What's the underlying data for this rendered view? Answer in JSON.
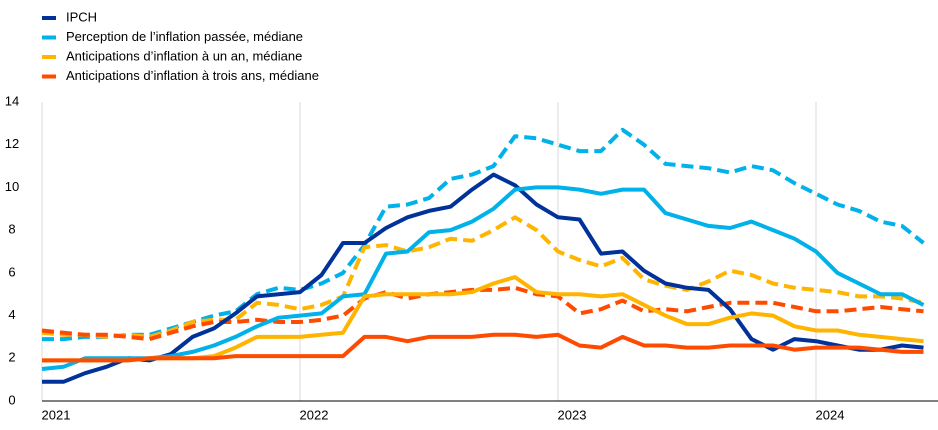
{
  "chart_data": {
    "type": "line",
    "categories": [
      "2021",
      null,
      null,
      null,
      null,
      null,
      null,
      null,
      null,
      null,
      null,
      null,
      "2022",
      null,
      null,
      null,
      null,
      null,
      null,
      null,
      null,
      null,
      null,
      null,
      "2023",
      null,
      null,
      null,
      null,
      null,
      null,
      null,
      null,
      null,
      null,
      null,
      "2024",
      null,
      null,
      null,
      null,
      null
    ],
    "series": [
      {
        "color": "#00b1ea",
        "dashed": true,
        "values": [
          2.9,
          2.9,
          3.0,
          3.0,
          3.1,
          3.1,
          3.4,
          3.7,
          4.0,
          4.2,
          5.0,
          5.3,
          5.2,
          5.5,
          6.0,
          7.3,
          9.1,
          9.2,
          9.5,
          10.4,
          10.6,
          11.0,
          12.4,
          12.3,
          12.0,
          11.7,
          11.7,
          12.7,
          12.0,
          11.1,
          11.0,
          10.9,
          10.7,
          11.0,
          10.8,
          10.2,
          9.7,
          9.2,
          8.9,
          8.4,
          8.2,
          7.4
        ]
      },
      {
        "color": "#ffb400",
        "dashed": true,
        "values": [
          3.2,
          3.1,
          3.1,
          3.0,
          3.1,
          3.0,
          3.3,
          3.7,
          3.8,
          3.8,
          4.6,
          4.5,
          4.3,
          4.5,
          4.9,
          7.2,
          7.3,
          7.0,
          7.2,
          7.6,
          7.5,
          8.0,
          8.6,
          8.0,
          7.0,
          6.6,
          6.3,
          6.7,
          5.7,
          5.4,
          5.2,
          5.6,
          6.1,
          5.9,
          5.5,
          5.3,
          5.2,
          5.1,
          4.9,
          4.9,
          4.8,
          4.6
        ]
      },
      {
        "color": "#ff4b00",
        "dashed": true,
        "values": [
          3.3,
          3.2,
          3.1,
          3.1,
          3.0,
          2.9,
          3.2,
          3.5,
          3.7,
          3.7,
          3.8,
          3.7,
          3.7,
          3.8,
          4.0,
          4.8,
          5.1,
          4.8,
          5.0,
          5.1,
          5.2,
          5.2,
          5.3,
          5.0,
          4.9,
          4.1,
          4.3,
          4.7,
          4.2,
          4.3,
          4.2,
          4.4,
          4.6,
          4.6,
          4.6,
          4.4,
          4.2,
          4.2,
          4.3,
          4.4,
          4.3,
          4.2
        ]
      },
      {
        "name": "IPCH",
        "color": "#003299",
        "values": [
          0.9,
          0.9,
          1.3,
          1.6,
          2.0,
          1.9,
          2.2,
          3.0,
          3.4,
          4.1,
          4.9,
          5.0,
          5.1,
          5.9,
          7.4,
          7.4,
          8.1,
          8.6,
          8.9,
          9.1,
          9.9,
          10.6,
          10.1,
          9.2,
          8.6,
          8.5,
          6.9,
          7.0,
          6.1,
          5.5,
          5.3,
          5.2,
          4.3,
          2.9,
          2.4,
          2.9,
          2.8,
          2.6,
          2.4,
          2.4,
          2.6,
          2.5
        ]
      },
      {
        "name": "Perception de l’inflation passée, médiane",
        "color": "#00b1ea",
        "values": [
          1.5,
          1.6,
          2.0,
          2.0,
          2.0,
          2.0,
          2.1,
          2.3,
          2.6,
          3.0,
          3.5,
          3.9,
          4.0,
          4.1,
          4.9,
          5.0,
          6.9,
          7.0,
          7.9,
          8.0,
          8.4,
          9.0,
          9.9,
          10.0,
          10.0,
          9.9,
          9.7,
          9.9,
          9.9,
          8.8,
          8.5,
          8.2,
          8.1,
          8.4,
          8.0,
          7.6,
          7.0,
          6.0,
          5.5,
          5.0,
          5.0,
          4.5
        ]
      },
      {
        "name": "Anticipations d’inflation à un an, médiane",
        "color": "#ffb400",
        "values": [
          1.9,
          1.9,
          1.9,
          1.9,
          1.9,
          2.0,
          2.0,
          2.0,
          2.1,
          2.5,
          3.0,
          3.0,
          3.0,
          3.1,
          3.2,
          4.9,
          5.0,
          5.0,
          5.0,
          5.0,
          5.1,
          5.5,
          5.8,
          5.1,
          5.0,
          5.0,
          4.9,
          5.0,
          4.5,
          4.0,
          3.6,
          3.6,
          3.9,
          4.1,
          4.0,
          3.5,
          3.3,
          3.3,
          3.1,
          3.0,
          2.9,
          2.8
        ]
      },
      {
        "name": "Anticipations d’inflation à trois ans, médiane",
        "color": "#ff4b00",
        "values": [
          1.9,
          1.9,
          1.9,
          1.9,
          1.9,
          2.0,
          2.0,
          2.0,
          2.0,
          2.1,
          2.1,
          2.1,
          2.1,
          2.1,
          2.1,
          3.0,
          3.0,
          2.8,
          3.0,
          3.0,
          3.0,
          3.1,
          3.1,
          3.0,
          3.1,
          2.6,
          2.5,
          3.0,
          2.6,
          2.6,
          2.5,
          2.5,
          2.6,
          2.6,
          2.6,
          2.4,
          2.5,
          2.5,
          2.5,
          2.4,
          2.3,
          2.3
        ]
      }
    ],
    "ylim": [
      0,
      14
    ],
    "yticks": [
      0,
      2,
      4,
      6,
      8,
      10,
      12,
      14
    ],
    "xgrid": true
  }
}
